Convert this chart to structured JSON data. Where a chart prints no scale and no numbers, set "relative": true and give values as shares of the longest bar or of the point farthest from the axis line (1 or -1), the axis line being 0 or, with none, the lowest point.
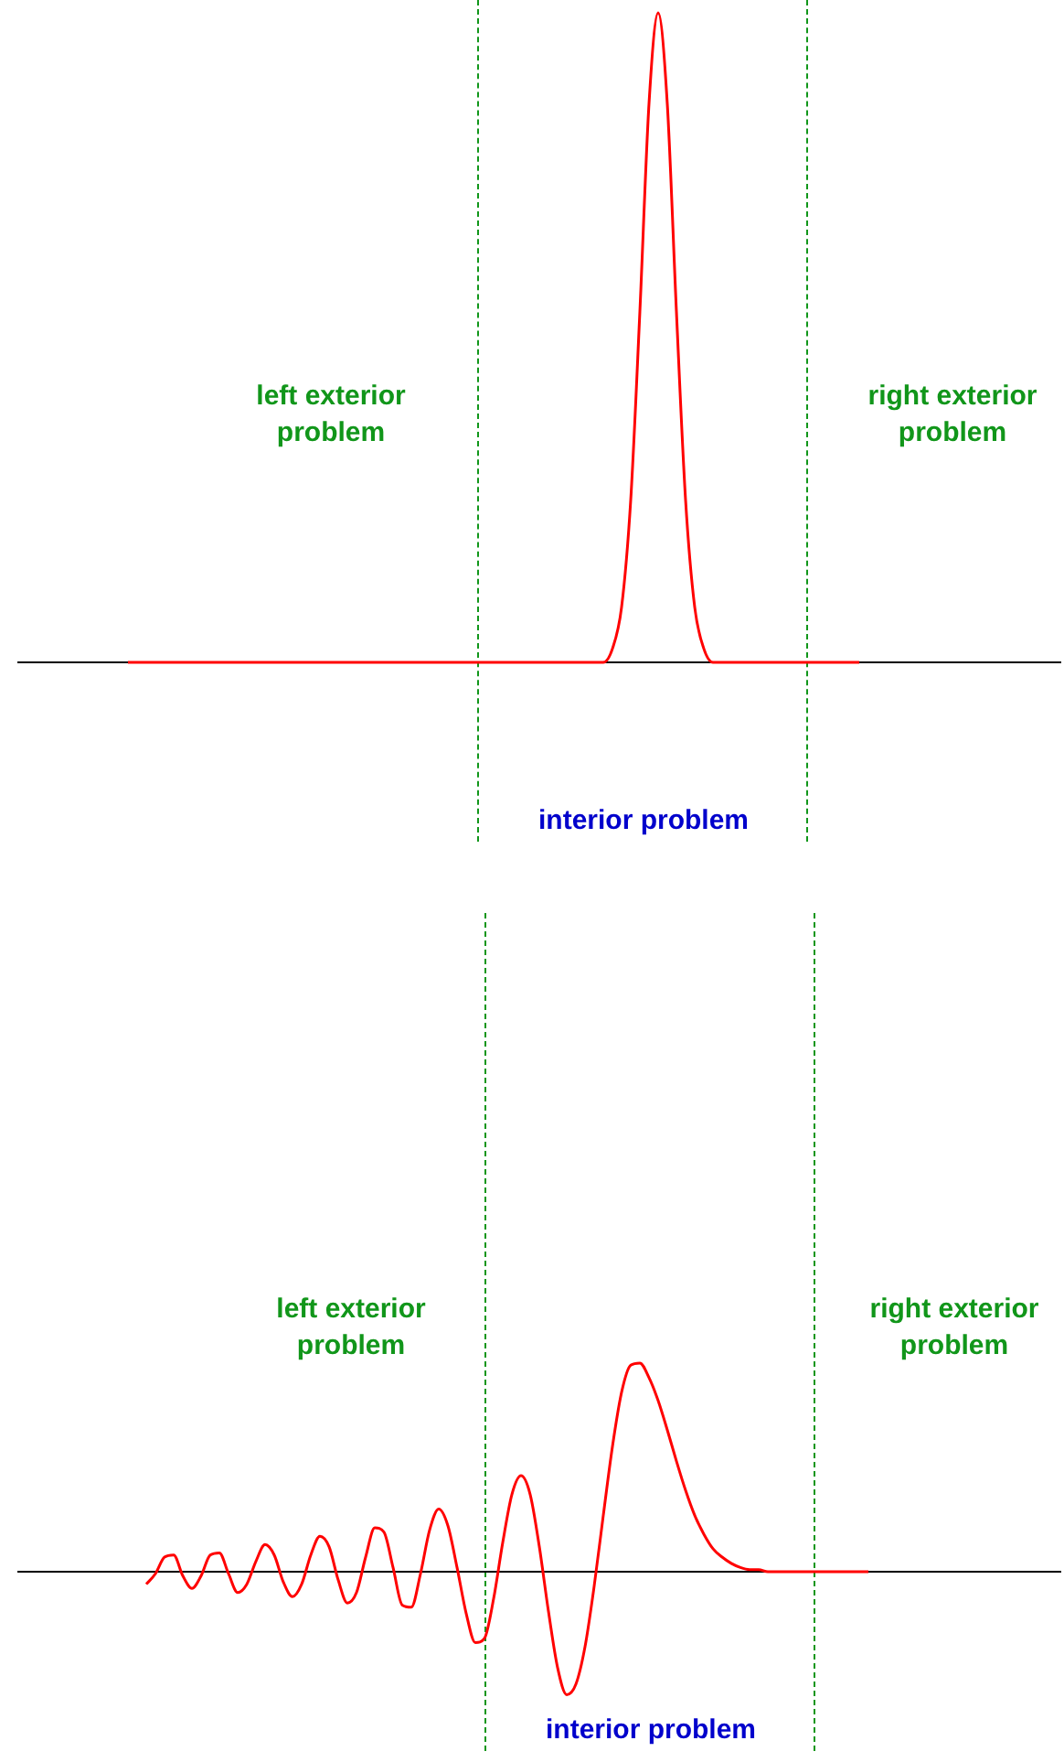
{
  "chart_data": [
    {
      "type": "line",
      "relative": true,
      "categories": [
        null,
        null,
        null,
        null,
        null,
        null,
        null,
        null,
        null,
        null,
        null,
        null,
        null,
        null,
        null,
        null,
        null,
        null,
        null,
        null,
        null,
        null,
        null,
        null,
        null,
        null,
        null,
        null,
        null,
        null,
        null,
        null,
        null,
        null,
        null,
        null,
        null,
        null,
        null,
        null,
        null,
        null,
        null,
        null,
        null,
        null,
        null,
        null,
        null,
        null,
        null,
        null,
        null,
        null,
        null,
        null,
        null,
        null,
        null,
        null,
        null,
        null,
        null,
        null,
        null,
        null,
        null,
        null,
        null,
        null,
        null,
        null,
        null,
        null,
        null,
        null,
        null,
        null,
        null,
        null,
        null,
        null,
        null,
        null,
        null,
        null,
        null,
        null,
        null,
        null,
        null,
        null,
        null,
        null,
        null,
        null,
        null,
        null,
        null,
        null,
        null,
        null,
        null,
        null,
        null,
        null,
        null,
        null,
        null,
        null,
        null,
        null,
        null,
        null,
        null
      ],
      "series": [
        {
          "color": "#ff0000",
          "values": [
            null,
            null,
            null,
            null,
            null,
            null,
            null,
            null,
            null,
            null,
            null,
            null,
            0,
            0,
            0,
            0,
            0,
            0,
            0,
            0,
            0,
            0,
            0,
            0,
            0,
            0,
            0,
            0,
            0,
            0,
            0,
            0,
            0,
            0,
            0,
            0,
            0,
            0,
            0,
            0,
            0,
            0,
            0,
            0,
            0,
            0,
            0,
            0,
            0,
            0,
            0,
            0,
            0,
            0,
            0,
            0,
            0,
            0,
            0,
            0,
            0,
            0,
            0,
            0,
            0,
            0.021,
            0.085,
            0.25,
            0.54,
            0.86,
            1,
            0.86,
            0.54,
            0.25,
            0.085,
            0.021,
            0,
            0,
            0,
            0,
            0,
            0,
            0,
            0,
            0,
            0,
            0,
            0,
            0,
            0,
            0,
            0,
            0,
            null,
            null,
            null,
            null,
            null,
            null,
            null,
            null,
            null,
            null,
            null,
            null,
            null,
            null,
            null,
            null,
            null,
            null,
            null,
            null,
            null,
            null
          ]
        }
      ],
      "annotations": [
        "left exterior\nproblem",
        "right exterior\nproblem",
        "interior problem"
      ],
      "grid": false,
      "legend": false,
      "marker": "none",
      "line_style": "solid"
    },
    {
      "type": "line",
      "relative": true,
      "categories": [
        null,
        null,
        null,
        null,
        null,
        null,
        null,
        null,
        null,
        null,
        null,
        null,
        null,
        null,
        null,
        null,
        null,
        null,
        null,
        null,
        null,
        null,
        null,
        null,
        null,
        null,
        null,
        null,
        null,
        null,
        null,
        null,
        null,
        null,
        null,
        null,
        null,
        null,
        null,
        null,
        null,
        null,
        null,
        null,
        null,
        null,
        null,
        null,
        null,
        null,
        null,
        null,
        null,
        null,
        null,
        null,
        null,
        null,
        null,
        null,
        null,
        null,
        null,
        null,
        null,
        null,
        null,
        null,
        null,
        null,
        null,
        null,
        null,
        null,
        null,
        null,
        null,
        null,
        null,
        null,
        null,
        null,
        null,
        null,
        null,
        null,
        null,
        null,
        null,
        null,
        null,
        null,
        null,
        null,
        null,
        null,
        null,
        null,
        null,
        null,
        null,
        null,
        null,
        null,
        null,
        null,
        null,
        null,
        null,
        null,
        null,
        null,
        null,
        null,
        null
      ],
      "series": [
        {
          "color": "#ff0000",
          "values": [
            null,
            null,
            null,
            null,
            null,
            null,
            null,
            null,
            null,
            null,
            null,
            null,
            null,
            null,
            -0.06,
            -0.01,
            0.07,
            0.08,
            -0.02,
            -0.08,
            -0.02,
            0.08,
            0.09,
            -0.01,
            -0.1,
            -0.06,
            0.05,
            0.13,
            0.08,
            -0.05,
            -0.12,
            -0.06,
            0.08,
            0.17,
            0.12,
            -0.04,
            -0.15,
            -0.1,
            0.07,
            0.21,
            0.19,
            0.02,
            -0.16,
            -0.17,
            -0.01,
            0.2,
            0.3,
            0.22,
            0.02,
            -0.2,
            -0.34,
            -0.32,
            -0.13,
            0.14,
            0.37,
            0.46,
            0.37,
            0.12,
            -0.19,
            -0.46,
            -0.59,
            -0.54,
            -0.36,
            -0.07,
            0.27,
            0.6,
            0.86,
            0.99,
            1,
            0.93,
            0.82,
            0.68,
            0.53,
            0.39,
            0.27,
            0.18,
            0.11,
            0.07,
            0.04,
            0.02,
            0.01,
            0.01,
            0,
            0,
            0,
            0,
            0,
            0,
            0,
            0,
            0,
            0,
            0,
            0,
            null,
            null,
            null,
            null,
            null,
            null,
            null,
            null,
            null,
            null,
            null,
            null,
            null,
            null,
            null,
            null,
            null,
            null,
            null,
            null,
            null
          ]
        }
      ],
      "annotations": [
        "left exterior\nproblem",
        "right exterior\nproblem",
        "interior problem"
      ],
      "grid": false,
      "legend": false,
      "marker": "none",
      "line_style": "solid"
    }
  ]
}
